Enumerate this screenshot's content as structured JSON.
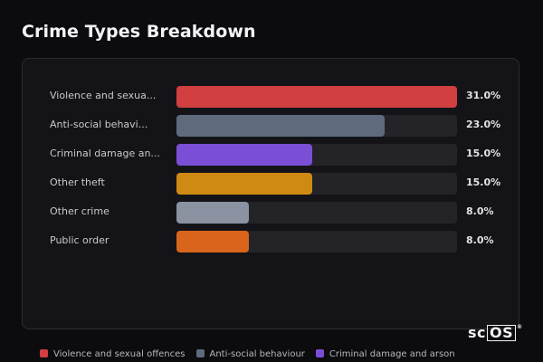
{
  "title": "Crime Types Breakdown",
  "logo": {
    "prefix": "sc",
    "boxed": "OS",
    "mark": "®"
  },
  "chart_data": {
    "type": "bar",
    "orientation": "horizontal",
    "xlim": [
      0,
      31
    ],
    "categories": [
      "Violence and sexual offences",
      "Anti-social behaviour",
      "Criminal damage and arson",
      "Other theft",
      "Other crime",
      "Public order"
    ],
    "display_labels": [
      "Violence and sexua...",
      "Anti-social behavi...",
      "Criminal damage an...",
      "Other theft",
      "Other crime",
      "Public order"
    ],
    "values": [
      31.0,
      23.0,
      15.0,
      15.0,
      8.0,
      8.0
    ],
    "value_labels": [
      "31.0%",
      "23.0%",
      "15.0%",
      "15.0%",
      "8.0%",
      "8.0%"
    ],
    "colors": [
      "#d13f40",
      "#5f6b7d",
      "#7a4fd6",
      "#cf8a14",
      "#8b93a2",
      "#d9641c"
    ],
    "legend": [
      {
        "label": "Violence and sexual offences",
        "color": "#d13f40"
      },
      {
        "label": "Anti-social behaviour",
        "color": "#5f6b7d"
      },
      {
        "label": "Criminal damage and arson",
        "color": "#7a4fd6"
      }
    ],
    "legend_position": "bottom-left"
  }
}
